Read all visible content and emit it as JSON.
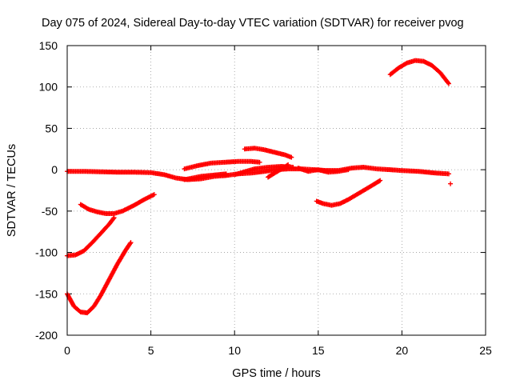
{
  "chart_data": {
    "type": "scatter",
    "title": "Day 075 of 2024, Sidereal Day-to-day VTEC variation (SDTVAR) for receiver pvog",
    "xlabel": "GPS time / hours",
    "ylabel": "SDTVAR / TECUs",
    "xlim": [
      0,
      25
    ],
    "ylim": [
      -200,
      150
    ],
    "x_ticks": [
      0,
      5,
      10,
      15,
      20,
      25
    ],
    "y_ticks": [
      -200,
      -150,
      -100,
      -50,
      0,
      50,
      100,
      150
    ],
    "grid": true,
    "marker": "+",
    "color": "#ff0000",
    "series": [
      {
        "name": "arc-main-flat",
        "points": [
          [
            0.0,
            -2
          ],
          [
            1.0,
            -2
          ],
          [
            2.0,
            -2.5
          ],
          [
            3.0,
            -3
          ],
          [
            4.0,
            -3
          ],
          [
            5.0,
            -3.5
          ],
          [
            5.8,
            -6
          ],
          [
            6.5,
            -10
          ],
          [
            7.2,
            -12
          ],
          [
            8.0,
            -11
          ],
          [
            8.8,
            -8
          ],
          [
            9.5,
            -7
          ],
          [
            10.2,
            -5
          ],
          [
            11.0,
            -4
          ],
          [
            11.8,
            -2
          ],
          [
            12.5,
            0
          ],
          [
            13.2,
            1
          ],
          [
            14.0,
            1
          ],
          [
            14.8,
            0
          ],
          [
            15.5,
            -1
          ],
          [
            16.2,
            -1
          ],
          [
            17.0,
            2
          ],
          [
            17.7,
            3
          ],
          [
            18.5,
            1
          ],
          [
            19.3,
            0
          ],
          [
            20.0,
            -1
          ],
          [
            21.0,
            -2
          ],
          [
            22.0,
            -4
          ],
          [
            22.8,
            -5
          ]
        ]
      },
      {
        "name": "arc-upper-left",
        "points": [
          [
            7.0,
            1
          ],
          [
            7.8,
            5
          ],
          [
            8.6,
            8
          ],
          [
            9.4,
            9
          ],
          [
            10.2,
            10
          ],
          [
            11.0,
            10
          ],
          [
            11.5,
            9
          ]
        ]
      },
      {
        "name": "arc-pink-dip",
        "points": [
          [
            7.0,
            -12
          ],
          [
            8.0,
            -8
          ],
          [
            9.0,
            -6
          ],
          [
            9.5,
            -5
          ]
        ]
      },
      {
        "name": "arc-rising-mid",
        "points": [
          [
            10.0,
            -6
          ],
          [
            10.5,
            -3
          ],
          [
            11.2,
            1
          ],
          [
            12.0,
            3
          ],
          [
            12.8,
            4
          ],
          [
            13.5,
            3
          ]
        ]
      },
      {
        "name": "arc-high-short",
        "points": [
          [
            10.6,
            25
          ],
          [
            11.2,
            26
          ],
          [
            11.8,
            24
          ],
          [
            12.4,
            21
          ],
          [
            13.0,
            18
          ],
          [
            13.4,
            15
          ]
        ]
      },
      {
        "name": "arc-small-hook",
        "points": [
          [
            12.0,
            -9
          ],
          [
            12.4,
            -4
          ],
          [
            12.9,
            2
          ],
          [
            13.2,
            6
          ]
        ]
      },
      {
        "name": "arc-mid-wiggle",
        "points": [
          [
            13.8,
            2
          ],
          [
            14.4,
            -2
          ],
          [
            15.0,
            0
          ],
          [
            15.6,
            -3
          ],
          [
            16.2,
            -2
          ],
          [
            16.8,
            0
          ]
        ]
      },
      {
        "name": "arc-neg-50",
        "points": [
          [
            0.8,
            -42
          ],
          [
            1.3,
            -48
          ],
          [
            1.8,
            -51
          ],
          [
            2.3,
            -53
          ],
          [
            2.8,
            -53
          ],
          [
            3.3,
            -50
          ],
          [
            4.0,
            -43
          ],
          [
            4.6,
            -36
          ],
          [
            5.2,
            -30
          ]
        ]
      },
      {
        "name": "arc-neg-100",
        "points": [
          [
            0.0,
            -104
          ],
          [
            0.5,
            -103
          ],
          [
            1.0,
            -98
          ],
          [
            1.5,
            -88
          ],
          [
            2.0,
            -77
          ],
          [
            2.5,
            -66
          ],
          [
            2.8,
            -58
          ]
        ]
      },
      {
        "name": "arc-neg-170",
        "points": [
          [
            0.0,
            -150
          ],
          [
            0.4,
            -165
          ],
          [
            0.8,
            -172
          ],
          [
            1.2,
            -173
          ],
          [
            1.6,
            -165
          ],
          [
            2.0,
            -152
          ],
          [
            2.5,
            -133
          ],
          [
            3.0,
            -114
          ],
          [
            3.5,
            -97
          ],
          [
            3.8,
            -88
          ]
        ]
      },
      {
        "name": "arc-neg-40-right",
        "points": [
          [
            14.9,
            -38
          ],
          [
            15.3,
            -41
          ],
          [
            15.8,
            -43
          ],
          [
            16.3,
            -41
          ],
          [
            16.8,
            -36
          ],
          [
            17.3,
            -30
          ],
          [
            17.8,
            -24
          ],
          [
            18.3,
            -18
          ],
          [
            18.7,
            -13
          ]
        ]
      },
      {
        "name": "arc-high-right",
        "points": [
          [
            19.3,
            115
          ],
          [
            19.8,
            123
          ],
          [
            20.3,
            129
          ],
          [
            20.8,
            132
          ],
          [
            21.3,
            131
          ],
          [
            21.8,
            126
          ],
          [
            22.3,
            117
          ],
          [
            22.8,
            104
          ]
        ]
      },
      {
        "name": "isolated-point",
        "points": [
          [
            22.9,
            -17
          ]
        ]
      }
    ]
  }
}
